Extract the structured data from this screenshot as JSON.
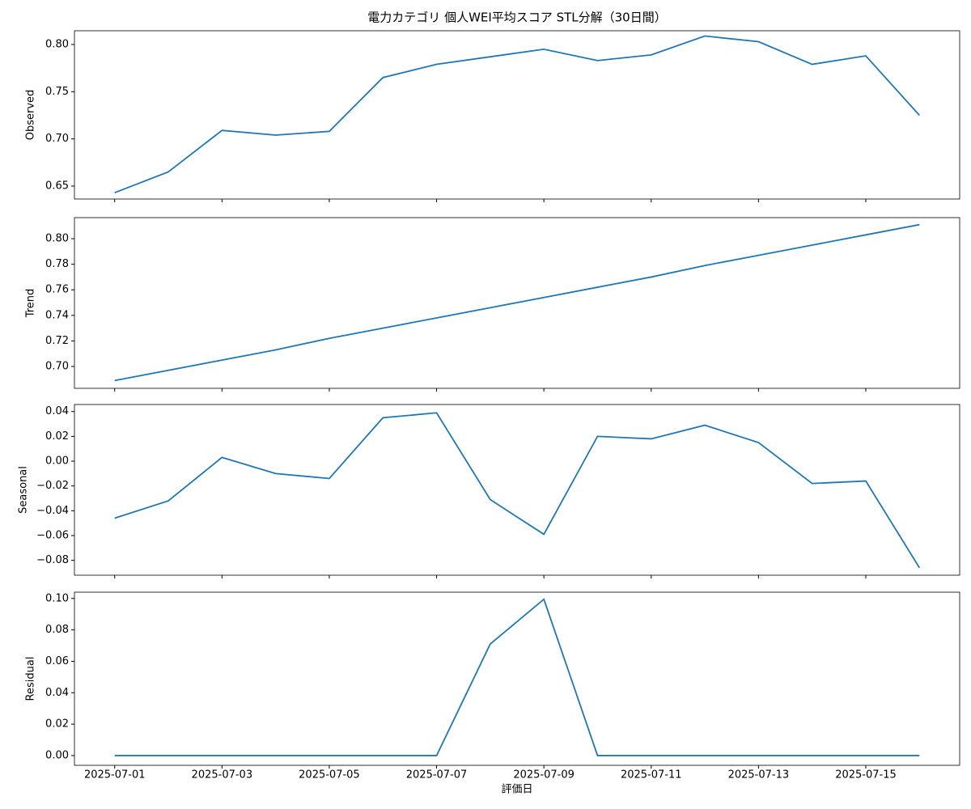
{
  "chart_data": [
    {
      "type": "line",
      "title": "電力カテゴリ 個人WEI平均スコア STL分解（30日間）",
      "ylabel": "Observed",
      "color": "#1f77b4",
      "x": [
        "2025-07-01",
        "2025-07-02",
        "2025-07-03",
        "2025-07-04",
        "2025-07-05",
        "2025-07-06",
        "2025-07-07",
        "2025-07-08",
        "2025-07-09",
        "2025-07-10",
        "2025-07-11",
        "2025-07-12",
        "2025-07-13",
        "2025-07-14",
        "2025-07-15",
        "2025-07-16"
      ],
      "values": [
        0.643,
        0.665,
        0.709,
        0.704,
        0.708,
        0.765,
        0.779,
        0.787,
        0.795,
        0.783,
        0.789,
        0.809,
        0.803,
        0.779,
        0.788,
        0.725
      ],
      "xlim": [
        "2025-06-30T06:00",
        "2025-07-16T18:00"
      ],
      "ylim": [
        0.6363,
        0.8146
      ],
      "yticks": [
        {
          "value": 0.65,
          "label": "0.65"
        },
        {
          "value": 0.7,
          "label": "0.70"
        },
        {
          "value": 0.75,
          "label": "0.75"
        },
        {
          "value": 0.8,
          "label": "0.80"
        }
      ]
    },
    {
      "type": "line",
      "ylabel": "Trend",
      "color": "#1f77b4",
      "x": [
        "2025-07-01",
        "2025-07-02",
        "2025-07-03",
        "2025-07-04",
        "2025-07-05",
        "2025-07-06",
        "2025-07-07",
        "2025-07-08",
        "2025-07-09",
        "2025-07-10",
        "2025-07-11",
        "2025-07-12",
        "2025-07-13",
        "2025-07-14",
        "2025-07-15",
        "2025-07-16"
      ],
      "values": [
        0.689,
        0.697,
        0.705,
        0.713,
        0.722,
        0.73,
        0.738,
        0.746,
        0.754,
        0.762,
        0.77,
        0.779,
        0.787,
        0.795,
        0.803,
        0.811
      ],
      "xlim": [
        "2025-06-30T06:00",
        "2025-07-16T18:00"
      ],
      "ylim": [
        0.6829,
        0.8165
      ],
      "yticks": [
        {
          "value": 0.7,
          "label": "0.70"
        },
        {
          "value": 0.72,
          "label": "0.72"
        },
        {
          "value": 0.74,
          "label": "0.74"
        },
        {
          "value": 0.76,
          "label": "0.76"
        },
        {
          "value": 0.78,
          "label": "0.78"
        },
        {
          "value": 0.8,
          "label": "0.80"
        }
      ]
    },
    {
      "type": "line",
      "ylabel": "Seasonal",
      "color": "#1f77b4",
      "x": [
        "2025-07-01",
        "2025-07-02",
        "2025-07-03",
        "2025-07-04",
        "2025-07-05",
        "2025-07-06",
        "2025-07-07",
        "2025-07-08",
        "2025-07-09",
        "2025-07-10",
        "2025-07-11",
        "2025-07-12",
        "2025-07-13",
        "2025-07-14",
        "2025-07-15",
        "2025-07-16"
      ],
      "values": [
        -0.046,
        -0.032,
        0.003,
        -0.01,
        -0.014,
        0.035,
        0.039,
        -0.031,
        -0.059,
        0.02,
        0.018,
        0.029,
        0.015,
        -0.018,
        -0.016,
        -0.086
      ],
      "xlim": [
        "2025-06-30T06:00",
        "2025-07-16T18:00"
      ],
      "ylim": [
        -0.092,
        0.0457
      ],
      "yticks": [
        {
          "value": -0.08,
          "label": "−0.08"
        },
        {
          "value": -0.06,
          "label": "−0.06"
        },
        {
          "value": -0.04,
          "label": "−0.04"
        },
        {
          "value": -0.02,
          "label": "−0.02"
        },
        {
          "value": 0,
          "label": "0.00"
        },
        {
          "value": 0.02,
          "label": "0.02"
        },
        {
          "value": 0.04,
          "label": "0.04"
        }
      ]
    },
    {
      "type": "line",
      "ylabel": "Residual",
      "xlabel": "評価日",
      "color": "#1f77b4",
      "x": [
        "2025-07-01",
        "2025-07-02",
        "2025-07-03",
        "2025-07-04",
        "2025-07-05",
        "2025-07-06",
        "2025-07-07",
        "2025-07-08",
        "2025-07-09",
        "2025-07-10",
        "2025-07-11",
        "2025-07-12",
        "2025-07-13",
        "2025-07-14",
        "2025-07-15",
        "2025-07-16"
      ],
      "values": [
        0,
        0,
        0,
        0,
        0,
        0,
        0,
        0.071,
        0.0995,
        0,
        0,
        0,
        0,
        0,
        0,
        0
      ],
      "xlim": [
        "2025-06-30T06:00",
        "2025-07-16T18:00"
      ],
      "ylim": [
        -0.0062,
        0.104
      ],
      "yticks": [
        {
          "value": 0,
          "label": "0.00"
        },
        {
          "value": 0.02,
          "label": "0.02"
        },
        {
          "value": 0.04,
          "label": "0.04"
        },
        {
          "value": 0.06,
          "label": "0.06"
        },
        {
          "value": 0.08,
          "label": "0.08"
        },
        {
          "value": 0.1,
          "label": "0.10"
        }
      ],
      "xticks": [
        "2025-07-01",
        "2025-07-03",
        "2025-07-05",
        "2025-07-07",
        "2025-07-09",
        "2025-07-11",
        "2025-07-13",
        "2025-07-15"
      ]
    }
  ]
}
